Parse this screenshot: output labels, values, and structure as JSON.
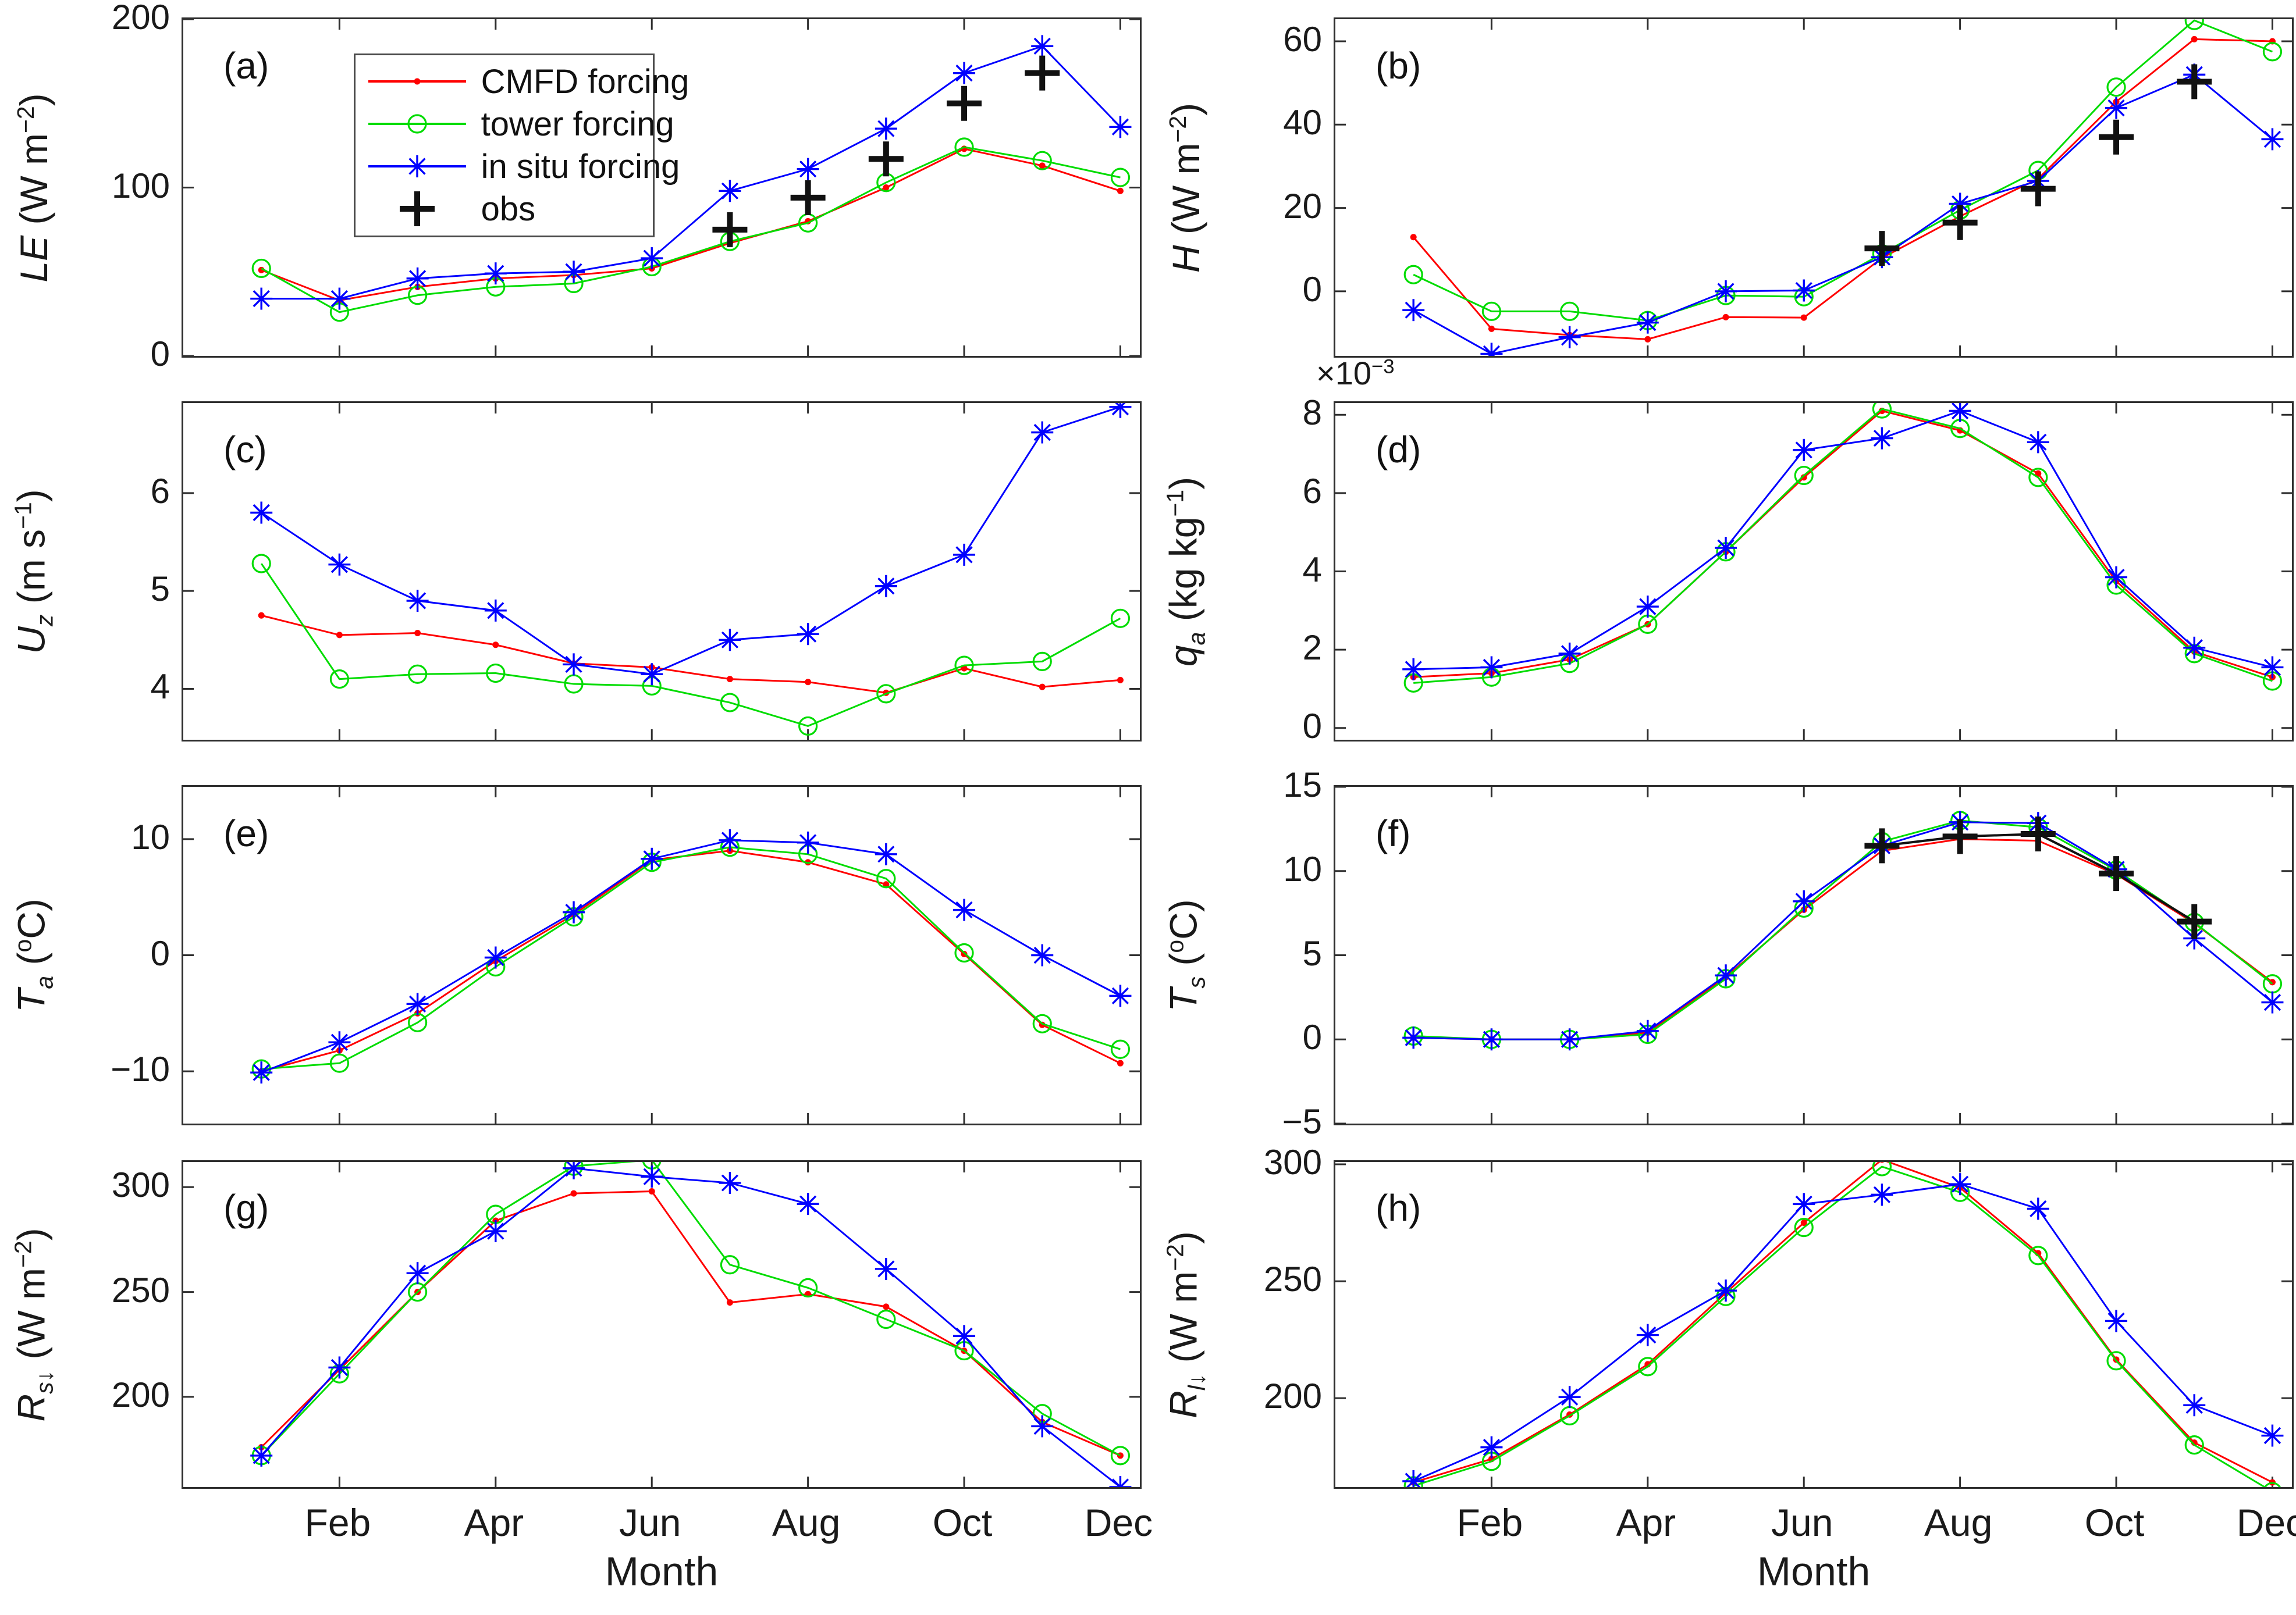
{
  "figure": {
    "colors": {
      "cmfd": "#ff0000",
      "tower": "#00dc00",
      "insitu": "#0000ff",
      "obs": "#111111",
      "axis": "#2e2e2e",
      "text": "#1a1a1a"
    }
  },
  "chart_data": {
    "type": "line",
    "xlabel": "Month",
    "xlim": [
      0,
      12.25
    ],
    "x_months": [
      1,
      2,
      3,
      4,
      5,
      6,
      7,
      8,
      9,
      10,
      11,
      12
    ],
    "xtick_months": [
      2,
      4,
      6,
      8,
      10,
      12
    ],
    "xtick_labels": [
      "Feb",
      "Apr",
      "Jun",
      "Aug",
      "Oct",
      "Dec"
    ],
    "series_meta": {
      "cmfd": {
        "label": "CMFD forcing",
        "marker": "dot"
      },
      "tower": {
        "label": "tower forcing",
        "marker": "circle"
      },
      "insitu": {
        "label": "in situ forcing",
        "marker": "star"
      },
      "obs": {
        "label": "obs",
        "marker": "plus"
      }
    },
    "legend": [
      {
        "key": "cmfd",
        "label": "CMFD forcing"
      },
      {
        "key": "tower",
        "label": "tower forcing"
      },
      {
        "key": "insitu",
        "label": "in situ forcing"
      },
      {
        "key": "obs",
        "label": "obs"
      }
    ],
    "panels": [
      {
        "id": "a",
        "tag": "(a)",
        "ylabel_parts": [
          [
            "LE",
            "i"
          ],
          [
            " (W m",
            ""
          ],
          [
            "−2",
            "sup"
          ],
          [
            ")",
            ""
          ]
        ],
        "multiplier_parts": null,
        "ylim": [
          0,
          200
        ],
        "yticks": [
          0,
          100,
          200
        ],
        "ytick_labels": [
          "0",
          "100",
          "200"
        ],
        "xticklabels": false,
        "series": {
          "cmfd": [
            51,
            33,
            41,
            46,
            48,
            52,
            67,
            80,
            100,
            123,
            113,
            98
          ],
          "tower": [
            52,
            26,
            36,
            41,
            43,
            53,
            68,
            79,
            103,
            124,
            116,
            106
          ],
          "insitu": [
            34,
            34,
            46,
            49,
            50,
            58,
            98,
            111,
            135,
            168,
            184,
            136
          ]
        },
        "obs": {
          "months": [
            7,
            8,
            9,
            10,
            11
          ],
          "values": [
            75,
            94,
            117,
            150,
            168
          ],
          "line": false
        },
        "has_legend": true
      },
      {
        "id": "b",
        "tag": "(b)",
        "ylabel_parts": [
          [
            "H",
            "i"
          ],
          [
            " (W m",
            ""
          ],
          [
            "−2",
            "sup"
          ],
          [
            ")",
            ""
          ]
        ],
        "multiplier_parts": null,
        "ylim": [
          -15.5,
          65.3
        ],
        "yticks": [
          0,
          20,
          40,
          60
        ],
        "ytick_labels": [
          "0",
          "20",
          "40",
          "60"
        ],
        "xticklabels": false,
        "series": {
          "cmfd": [
            13,
            -9,
            -10.5,
            -11.5,
            -6.2,
            -6.3,
            8,
            18,
            27,
            45.5,
            60.5,
            60
          ],
          "tower": [
            4,
            -4.8,
            -4.8,
            -7,
            -1,
            -1.3,
            9,
            19.5,
            29,
            49,
            65,
            57.5
          ],
          "insitu": [
            -4.5,
            -15,
            -11,
            -7.5,
            0,
            0.2,
            8.2,
            21,
            26.5,
            44,
            52,
            36.5
          ]
        },
        "obs": {
          "months": [
            7,
            8,
            9,
            10,
            11
          ],
          "values": [
            10.3,
            16.5,
            24.6,
            37,
            50.3
          ],
          "line": false
        },
        "has_legend": false
      },
      {
        "id": "c",
        "tag": "(c)",
        "ylabel_parts": [
          [
            "U",
            "i"
          ],
          [
            "z",
            "subi"
          ],
          [
            " (m s",
            ""
          ],
          [
            "−1",
            "sup"
          ],
          [
            ")",
            ""
          ]
        ],
        "multiplier_parts": null,
        "ylim": [
          3.48,
          6.92
        ],
        "yticks": [
          4,
          5,
          6
        ],
        "ytick_labels": [
          "4",
          "5",
          "6"
        ],
        "xticklabels": false,
        "series": {
          "cmfd": [
            4.75,
            4.55,
            4.57,
            4.45,
            4.26,
            4.22,
            4.1,
            4.07,
            3.96,
            4.21,
            4.02,
            4.09
          ],
          "tower": [
            5.28,
            4.1,
            4.15,
            4.16,
            4.05,
            4.03,
            3.86,
            3.62,
            3.95,
            4.24,
            4.28,
            4.72
          ],
          "insitu": [
            5.8,
            5.27,
            4.9,
            4.8,
            4.25,
            4.15,
            4.5,
            4.56,
            5.05,
            5.37,
            6.62,
            6.88
          ]
        },
        "obs": null,
        "has_legend": false
      },
      {
        "id": "d",
        "tag": "(d)",
        "ylabel_parts": [
          [
            "q",
            "i"
          ],
          [
            "a",
            "subi"
          ],
          [
            " (kg kg",
            ""
          ],
          [
            "−1",
            "sup"
          ],
          [
            ")",
            ""
          ]
        ],
        "multiplier_parts": [
          [
            "×10",
            ""
          ],
          [
            "−3",
            "sup"
          ]
        ],
        "ylim": [
          -0.3,
          8.3
        ],
        "yticks": [
          0,
          2,
          4,
          6,
          8
        ],
        "ytick_labels": [
          "0",
          "2",
          "4",
          "6",
          "8"
        ],
        "xticklabels": false,
        "series": {
          "cmfd": [
            1.3,
            1.4,
            1.75,
            2.65,
            4.5,
            6.4,
            8.1,
            7.6,
            6.5,
            3.75,
            1.95,
            1.3
          ],
          "tower": [
            1.15,
            1.3,
            1.65,
            2.65,
            4.5,
            6.45,
            8.15,
            7.65,
            6.4,
            3.65,
            1.9,
            1.2
          ],
          "insitu": [
            1.5,
            1.55,
            1.9,
            3.1,
            4.6,
            7.1,
            7.4,
            8.1,
            7.3,
            3.85,
            2.05,
            1.55
          ]
        },
        "obs": null,
        "has_legend": false
      },
      {
        "id": "e",
        "tag": "(e)",
        "ylabel_parts": [
          [
            "T",
            "i"
          ],
          [
            "a",
            "subi"
          ],
          [
            " (",
            ""
          ],
          [
            "o",
            "sup"
          ],
          [
            "C)",
            ""
          ]
        ],
        "multiplier_parts": null,
        "ylim": [
          -14.5,
          14.5
        ],
        "yticks": [
          -10,
          0,
          10
        ],
        "ytick_labels": [
          "−10",
          "0",
          "10"
        ],
        "xticklabels": false,
        "series": {
          "cmfd": [
            -10,
            -8.2,
            -5,
            -0.5,
            3.5,
            8.2,
            9,
            8,
            6.1,
            0.1,
            -6,
            -9.3
          ],
          "tower": [
            -9.8,
            -9.3,
            -5.8,
            -1,
            3.3,
            8,
            9.3,
            8.7,
            6.6,
            0.2,
            -5.9,
            -8.1
          ],
          "insitu": [
            -10.1,
            -7.5,
            -4.2,
            -0.2,
            3.7,
            8.3,
            9.9,
            9.7,
            8.7,
            3.9,
            0,
            -3.5
          ]
        },
        "obs": null,
        "has_legend": false
      },
      {
        "id": "f",
        "tag": "(f)",
        "ylabel_parts": [
          [
            "T",
            "i"
          ],
          [
            "s",
            "subi"
          ],
          [
            " (",
            ""
          ],
          [
            "o",
            "sup"
          ],
          [
            "C)",
            ""
          ]
        ],
        "multiplier_parts": null,
        "ylim": [
          -5,
          15
        ],
        "yticks": [
          -5,
          0,
          5,
          10,
          15
        ],
        "ytick_labels": [
          "−5",
          "0",
          "5",
          "10",
          "15"
        ],
        "xticklabels": false,
        "series": {
          "cmfd": [
            0.1,
            0,
            0,
            0.4,
            3.7,
            7.7,
            11.2,
            11.9,
            11.8,
            9.8,
            6.9,
            3.4
          ],
          "tower": [
            0.2,
            0,
            0,
            0.3,
            3.6,
            7.8,
            11.75,
            13,
            12.6,
            10.05,
            6.95,
            3.3
          ],
          "insitu": [
            0.1,
            0,
            0,
            0.5,
            3.8,
            8.2,
            11.5,
            12.9,
            12.85,
            10.1,
            6,
            2.2
          ]
        },
        "obs": {
          "months": [
            7,
            8,
            9,
            10,
            11
          ],
          "values": [
            11.5,
            12.05,
            12.2,
            9.85,
            7.0
          ],
          "line": true
        },
        "has_legend": false
      },
      {
        "id": "g",
        "tag": "(g)",
        "ylabel_parts": [
          [
            "R",
            "i"
          ],
          [
            "s↓",
            "subi"
          ],
          [
            " (W m",
            ""
          ],
          [
            "−2",
            "sup"
          ],
          [
            ")",
            ""
          ]
        ],
        "multiplier_parts": null,
        "ylim": [
          157,
          312
        ],
        "yticks": [
          200,
          250,
          300
        ],
        "ytick_labels": [
          "200",
          "250",
          "300"
        ],
        "xticklabels": true,
        "series": {
          "cmfd": [
            176,
            213,
            250,
            284,
            297,
            298,
            245,
            249,
            243,
            222,
            188,
            172
          ],
          "tower": [
            172,
            211,
            250,
            287,
            310,
            313,
            263,
            252,
            237,
            222,
            192,
            172
          ],
          "insitu": [
            172,
            214,
            259,
            279,
            309,
            305,
            302,
            292,
            261,
            229,
            186,
            157
          ]
        },
        "obs": null,
        "has_legend": false
      },
      {
        "id": "h",
        "tag": "(h)",
        "ylabel_parts": [
          [
            "R",
            "i"
          ],
          [
            "l↓",
            "subi"
          ],
          [
            " (W m",
            ""
          ],
          [
            "−2",
            "sup"
          ],
          [
            ")",
            ""
          ]
        ],
        "multiplier_parts": null,
        "ylim": [
          162,
          301
        ],
        "yticks": [
          200,
          250,
          300
        ],
        "ytick_labels": [
          "200",
          "250",
          "300"
        ],
        "xticklabels": true,
        "series": {
          "cmfd": [
            164,
            174,
            193,
            214.5,
            245,
            275,
            302,
            290,
            262,
            216.5,
            181,
            164
          ],
          "tower": [
            162.5,
            173,
            192.5,
            213.5,
            243.5,
            273,
            299,
            288,
            261,
            216,
            180,
            160
          ],
          "insitu": [
            164.5,
            179,
            200.5,
            227,
            246,
            283,
            287,
            291.5,
            281,
            233,
            197,
            184
          ]
        },
        "obs": null,
        "has_legend": false
      }
    ]
  }
}
